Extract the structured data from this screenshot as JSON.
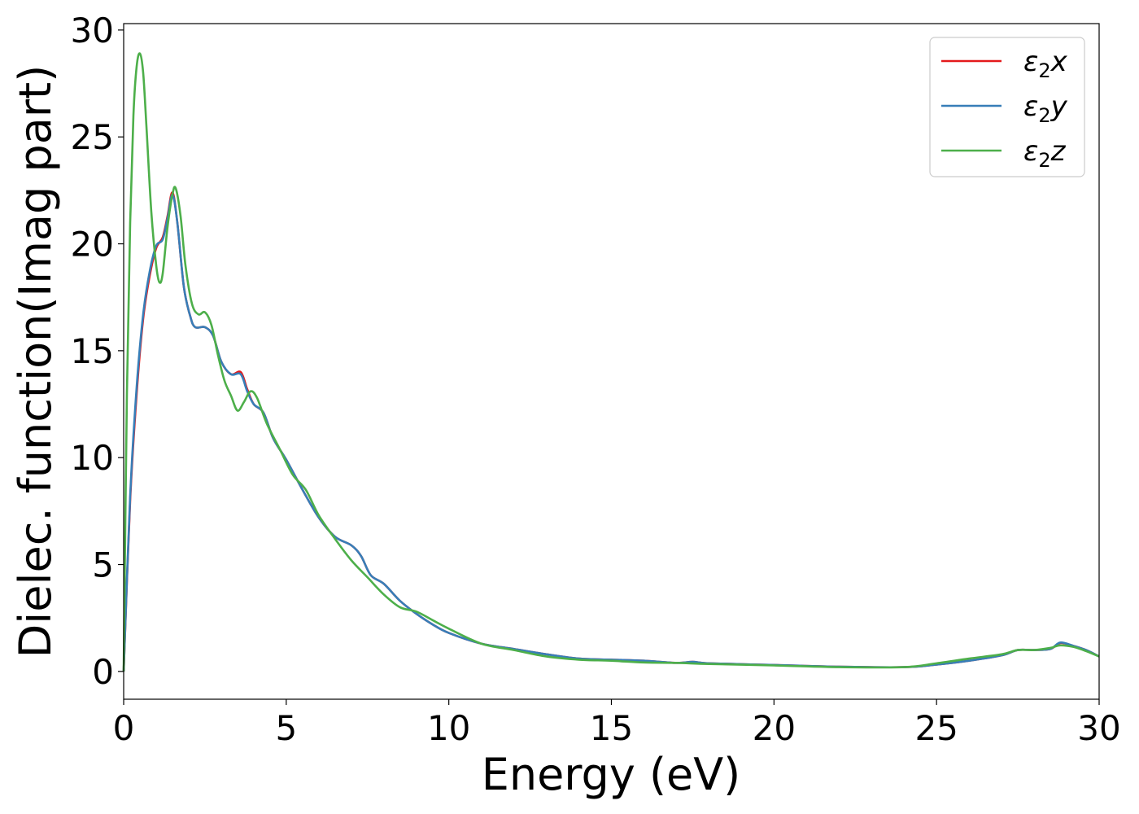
{
  "chart_data": {
    "type": "line",
    "title": "",
    "xlabel": "Energy (eV)",
    "ylabel": "Dielec. function(Imag part)",
    "xlim": [
      0,
      30
    ],
    "ylim": [
      -1.3,
      30.3
    ],
    "x_ticks": [
      0,
      5,
      10,
      15,
      20,
      25,
      30
    ],
    "y_ticks": [
      0,
      5,
      10,
      15,
      20,
      25,
      30
    ],
    "grid": false,
    "legend_position": "top-right",
    "series": [
      {
        "name": "ε₂x",
        "legend_base": "ε",
        "legend_sub": "2",
        "legend_suffix": "x",
        "color": "#e41a1c",
        "points": [
          [
            0,
            0
          ],
          [
            0.2,
            8
          ],
          [
            0.4,
            13
          ],
          [
            0.6,
            16.5
          ],
          [
            0.8,
            18.5
          ],
          [
            1.0,
            19.8
          ],
          [
            1.2,
            20.3
          ],
          [
            1.35,
            21.3
          ],
          [
            1.5,
            22.4
          ],
          [
            1.65,
            21.0
          ],
          [
            1.85,
            18.0
          ],
          [
            2.05,
            16.6
          ],
          [
            2.2,
            16.1
          ],
          [
            2.5,
            16.1
          ],
          [
            2.75,
            15.7
          ],
          [
            3.0,
            14.5
          ],
          [
            3.3,
            13.9
          ],
          [
            3.6,
            14.0
          ],
          [
            3.8,
            13.2
          ],
          [
            4.0,
            12.5
          ],
          [
            4.3,
            12.1
          ],
          [
            4.6,
            10.9
          ],
          [
            5.0,
            9.9
          ],
          [
            5.5,
            8.5
          ],
          [
            6.0,
            7.2
          ],
          [
            6.5,
            6.3
          ],
          [
            7.0,
            5.9
          ],
          [
            7.3,
            5.4
          ],
          [
            7.6,
            4.5
          ],
          [
            8.0,
            4.1
          ],
          [
            8.5,
            3.3
          ],
          [
            9.0,
            2.7
          ],
          [
            9.5,
            2.2
          ],
          [
            10.0,
            1.8
          ],
          [
            11.0,
            1.3
          ],
          [
            12.0,
            1.05
          ],
          [
            13.0,
            0.8
          ],
          [
            14.0,
            0.6
          ],
          [
            15.0,
            0.55
          ],
          [
            16.0,
            0.5
          ],
          [
            17.0,
            0.4
          ],
          [
            17.5,
            0.45
          ],
          [
            18.0,
            0.38
          ],
          [
            20.0,
            0.3
          ],
          [
            22.0,
            0.22
          ],
          [
            24.0,
            0.2
          ],
          [
            25.0,
            0.32
          ],
          [
            26.0,
            0.5
          ],
          [
            27.0,
            0.75
          ],
          [
            27.5,
            1.0
          ],
          [
            28.0,
            1.0
          ],
          [
            28.5,
            1.05
          ],
          [
            28.8,
            1.33
          ],
          [
            29.2,
            1.2
          ],
          [
            29.6,
            1.0
          ],
          [
            30.0,
            0.7
          ]
        ]
      },
      {
        "name": "ε₂y",
        "legend_base": "ε",
        "legend_sub": "2",
        "legend_suffix": "y",
        "color": "#377eb8",
        "points": [
          [
            0,
            0
          ],
          [
            0.2,
            8.2
          ],
          [
            0.4,
            13.3
          ],
          [
            0.6,
            16.7
          ],
          [
            0.8,
            18.7
          ],
          [
            1.0,
            19.9
          ],
          [
            1.2,
            20.2
          ],
          [
            1.35,
            21.2
          ],
          [
            1.5,
            22.3
          ],
          [
            1.65,
            21.0
          ],
          [
            1.85,
            18.0
          ],
          [
            2.05,
            16.6
          ],
          [
            2.2,
            16.1
          ],
          [
            2.5,
            16.1
          ],
          [
            2.75,
            15.7
          ],
          [
            3.0,
            14.5
          ],
          [
            3.3,
            13.9
          ],
          [
            3.6,
            13.9
          ],
          [
            3.8,
            13.1
          ],
          [
            4.0,
            12.5
          ],
          [
            4.3,
            12.1
          ],
          [
            4.6,
            10.9
          ],
          [
            5.0,
            9.9
          ],
          [
            5.5,
            8.5
          ],
          [
            6.0,
            7.2
          ],
          [
            6.5,
            6.3
          ],
          [
            7.0,
            5.9
          ],
          [
            7.3,
            5.4
          ],
          [
            7.6,
            4.5
          ],
          [
            8.0,
            4.1
          ],
          [
            8.5,
            3.3
          ],
          [
            9.0,
            2.7
          ],
          [
            9.5,
            2.2
          ],
          [
            10.0,
            1.8
          ],
          [
            11.0,
            1.3
          ],
          [
            12.0,
            1.05
          ],
          [
            13.0,
            0.8
          ],
          [
            14.0,
            0.6
          ],
          [
            15.0,
            0.55
          ],
          [
            16.0,
            0.5
          ],
          [
            17.0,
            0.4
          ],
          [
            17.5,
            0.45
          ],
          [
            18.0,
            0.38
          ],
          [
            20.0,
            0.3
          ],
          [
            22.0,
            0.22
          ],
          [
            24.0,
            0.2
          ],
          [
            25.0,
            0.32
          ],
          [
            26.0,
            0.5
          ],
          [
            27.0,
            0.75
          ],
          [
            27.5,
            1.0
          ],
          [
            28.0,
            1.0
          ],
          [
            28.5,
            1.05
          ],
          [
            28.8,
            1.35
          ],
          [
            29.2,
            1.2
          ],
          [
            29.6,
            1.0
          ],
          [
            30.0,
            0.7
          ]
        ]
      },
      {
        "name": "ε₂z",
        "legend_base": "ε",
        "legend_sub": "2",
        "legend_suffix": "z",
        "color": "#4daf4a",
        "points": [
          [
            0,
            0
          ],
          [
            0.1,
            13
          ],
          [
            0.2,
            21
          ],
          [
            0.3,
            26
          ],
          [
            0.4,
            28.3
          ],
          [
            0.5,
            28.9
          ],
          [
            0.6,
            28
          ],
          [
            0.7,
            25.5
          ],
          [
            0.85,
            21.5
          ],
          [
            1.0,
            19
          ],
          [
            1.1,
            18.2
          ],
          [
            1.2,
            18.6
          ],
          [
            1.35,
            20.8
          ],
          [
            1.5,
            22.3
          ],
          [
            1.6,
            22.6
          ],
          [
            1.75,
            21.3
          ],
          [
            1.9,
            19.0
          ],
          [
            2.1,
            17.2
          ],
          [
            2.3,
            16.7
          ],
          [
            2.5,
            16.8
          ],
          [
            2.7,
            16.2
          ],
          [
            2.9,
            14.8
          ],
          [
            3.1,
            13.6
          ],
          [
            3.3,
            12.9
          ],
          [
            3.5,
            12.2
          ],
          [
            3.7,
            12.6
          ],
          [
            3.9,
            13.1
          ],
          [
            4.1,
            12.8
          ],
          [
            4.4,
            11.6
          ],
          [
            4.8,
            10.4
          ],
          [
            5.2,
            9.2
          ],
          [
            5.6,
            8.5
          ],
          [
            6.0,
            7.3
          ],
          [
            6.5,
            6.2
          ],
          [
            7.0,
            5.2
          ],
          [
            7.5,
            4.4
          ],
          [
            8.0,
            3.6
          ],
          [
            8.5,
            3.0
          ],
          [
            9.0,
            2.8
          ],
          [
            9.5,
            2.4
          ],
          [
            10.0,
            2.0
          ],
          [
            11.0,
            1.3
          ],
          [
            12.0,
            1.0
          ],
          [
            13.0,
            0.7
          ],
          [
            14.0,
            0.55
          ],
          [
            15.0,
            0.5
          ],
          [
            16.0,
            0.42
          ],
          [
            17.0,
            0.4
          ],
          [
            18.0,
            0.35
          ],
          [
            20.0,
            0.28
          ],
          [
            22.0,
            0.2
          ],
          [
            24.0,
            0.2
          ],
          [
            25.0,
            0.38
          ],
          [
            26.0,
            0.6
          ],
          [
            27.0,
            0.8
          ],
          [
            27.5,
            1.0
          ],
          [
            28.0,
            1.0
          ],
          [
            28.5,
            1.1
          ],
          [
            28.8,
            1.22
          ],
          [
            29.2,
            1.15
          ],
          [
            29.6,
            0.95
          ],
          [
            30.0,
            0.7
          ]
        ]
      }
    ]
  }
}
